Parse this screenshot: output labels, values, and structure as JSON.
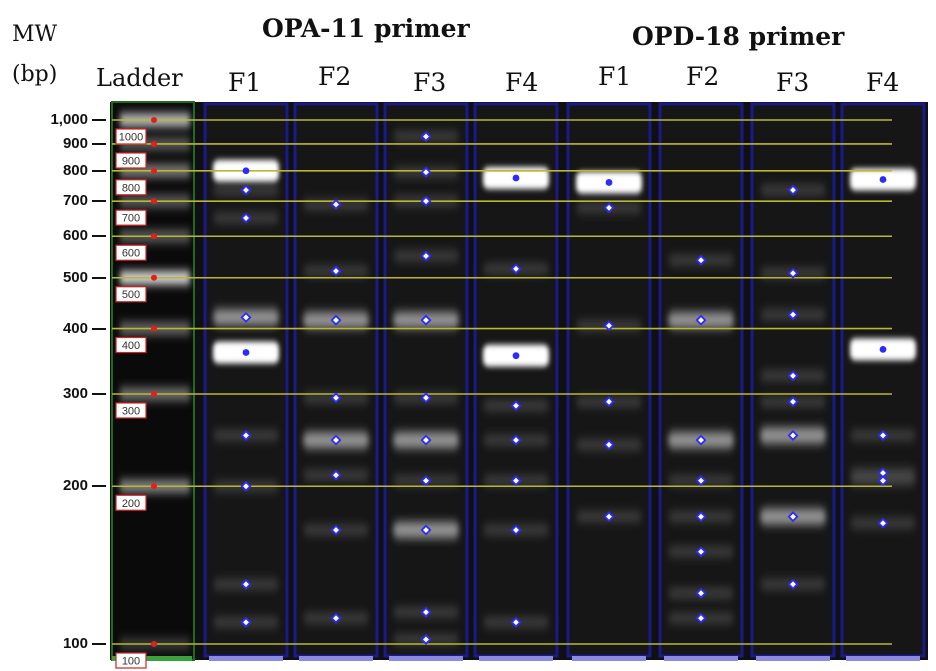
{
  "header": {
    "mw_label": "MW",
    "bp_label": "(bp)",
    "ladder_label": "Ladder",
    "group_left": "OPA-11 primer",
    "group_right": "OPD-18 primer"
  },
  "lanes": [
    "F1",
    "F2",
    "F3",
    "F4",
    "F1",
    "F2",
    "F3",
    "F4"
  ],
  "axis": {
    "ticks": [
      "1,000",
      "900",
      "800",
      "700",
      "600",
      "500",
      "400",
      "300",
      "200",
      "100"
    ],
    "ladder_marks": [
      "1000",
      "900",
      "800",
      "700",
      "600",
      "500",
      "400",
      "300",
      "200",
      "100"
    ]
  },
  "colors": {
    "gel_background": "#101010",
    "lane_border": "#1a1a8a",
    "ruler_line": "#b8b832",
    "marker": "#2b2bff",
    "ladder_dot": "#e02020"
  },
  "chart_data": {
    "type": "gel",
    "ladder_bp": [
      1000,
      900,
      800,
      700,
      600,
      500,
      400,
      300,
      200,
      100
    ],
    "lanes": [
      {
        "name": "OPA-11 F1",
        "bands_bp": [
          800,
          735,
          650,
          420,
          360,
          250,
          200,
          130,
          110
        ]
      },
      {
        "name": "OPA-11 F2",
        "bands_bp": [
          690,
          515,
          415,
          295,
          245,
          210,
          165,
          112
        ]
      },
      {
        "name": "OPA-11 F3",
        "bands_bp": [
          930,
          795,
          700,
          550,
          415,
          295,
          245,
          205,
          165,
          115,
          102
        ]
      },
      {
        "name": "OPA-11 F4",
        "bands_bp": [
          775,
          520,
          355,
          285,
          245,
          205,
          165,
          110
        ]
      },
      {
        "name": "OPD-18 F1",
        "bands_bp": [
          760,
          680,
          405,
          290,
          240,
          175
        ]
      },
      {
        "name": "OPD-18 F2",
        "bands_bp": [
          540,
          415,
          245,
          205,
          175,
          150,
          125,
          112
        ]
      },
      {
        "name": "OPD-18 F3",
        "bands_bp": [
          735,
          510,
          425,
          325,
          290,
          250,
          175,
          130
        ]
      },
      {
        "name": "OPD-18 F4",
        "bands_bp": [
          770,
          365,
          250,
          212,
          205,
          170
        ]
      }
    ]
  }
}
